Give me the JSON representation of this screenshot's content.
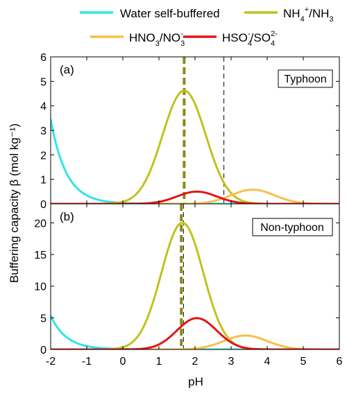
{
  "legend": [
    {
      "name": "Water self-buffered",
      "color": "#2ee6e6"
    },
    {
      "name": "NH4+/NH3",
      "color": "#c2c21a"
    },
    {
      "name": "HNO3/NO3-",
      "color": "#f7bf4a"
    },
    {
      "name": "HSO4-/SO42-",
      "color": "#e01616"
    }
  ],
  "xlabel": "pH",
  "ylabel": "Buffering capacity β (mol kg⁻¹)",
  "chart_data": [
    {
      "type": "line",
      "panel_label": "(a)",
      "panel_title": "Typhoon",
      "xlim": [
        -2,
        6
      ],
      "ylim": [
        0,
        6
      ],
      "xticks": [
        -2,
        -1,
        0,
        1,
        2,
        3,
        4,
        5,
        6
      ],
      "yticks": [
        0,
        1,
        2,
        3,
        4,
        5,
        6
      ],
      "vlines": [
        {
          "x": 1.7,
          "style": "dashed-thick",
          "color": "#8a8a1a"
        },
        {
          "x": 2.8,
          "style": "dashed-thin",
          "color": "#000000"
        }
      ],
      "series": [
        {
          "name": "Water self-buffered",
          "kind": "water",
          "A": 0.015
        },
        {
          "name": "NH4+/NH3",
          "kind": "gauss",
          "peak": 1.7,
          "height": 4.62,
          "width": 0.6
        },
        {
          "name": "HNO3/NO3-",
          "kind": "gauss",
          "peak": 3.6,
          "height": 0.58,
          "width": 0.6
        },
        {
          "name": "HSO4-/SO42-",
          "kind": "gauss",
          "peak": 2.05,
          "height": 0.5,
          "width": 0.55
        }
      ]
    },
    {
      "type": "line",
      "panel_label": "(b)",
      "panel_title": "Non-typhoon",
      "xlim": [
        -2,
        6
      ],
      "ylim": [
        0,
        23
      ],
      "xticks": [
        -2,
        -1,
        0,
        1,
        2,
        3,
        4,
        5,
        6
      ],
      "yticks": [
        0,
        5,
        10,
        15,
        20
      ],
      "vlines": [
        {
          "x": 1.62,
          "style": "dashed-thick",
          "color": "#8a8a1a"
        },
        {
          "x": 1.68,
          "style": "dashed-thin",
          "color": "#000000"
        }
      ],
      "series": [
        {
          "name": "Water self-buffered",
          "kind": "water",
          "A": 0.0232
        },
        {
          "name": "NH4+/NH3",
          "kind": "gauss",
          "peak": 1.65,
          "height": 20.0,
          "width": 0.58
        },
        {
          "name": "HNO3/NO3-",
          "kind": "gauss",
          "peak": 3.4,
          "height": 2.2,
          "width": 0.6
        },
        {
          "name": "HSO4-/SO42-",
          "kind": "gauss",
          "peak": 2.05,
          "height": 4.95,
          "width": 0.55
        }
      ]
    }
  ]
}
